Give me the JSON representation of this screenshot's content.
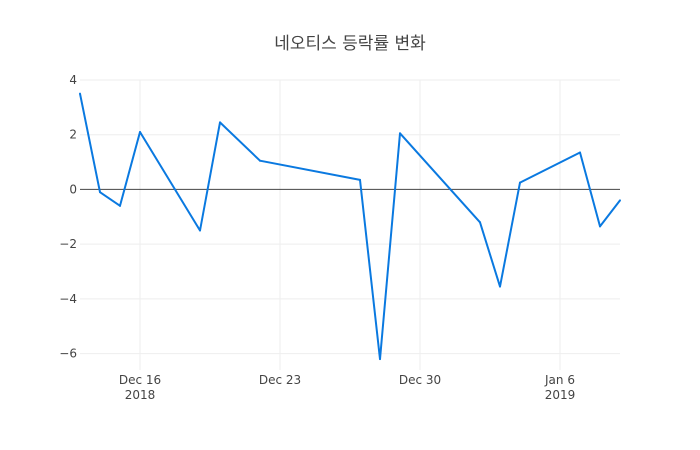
{
  "chart_data": {
    "type": "line",
    "title": "네오티스 등락률 변화",
    "xlabel": "",
    "ylabel": "",
    "x_range": [
      "2018-12-13",
      "2019-01-09"
    ],
    "ylim": [
      -6.6,
      4.0
    ],
    "grid": true,
    "legend": "none",
    "x_ticks": [
      {
        "date": "2018-12-16",
        "line1": "Dec 16",
        "line2": "2018"
      },
      {
        "date": "2018-12-23",
        "line1": "Dec 23",
        "line2": ""
      },
      {
        "date": "2018-12-30",
        "line1": "Dec 30",
        "line2": ""
      },
      {
        "date": "2019-01-06",
        "line1": "Jan 6",
        "line2": "2019"
      }
    ],
    "y_ticks": [
      {
        "value": 4,
        "label": "4"
      },
      {
        "value": 2,
        "label": "2"
      },
      {
        "value": 0,
        "label": "0"
      },
      {
        "value": -2,
        "label": "−2"
      },
      {
        "value": -4,
        "label": "−4"
      },
      {
        "value": -6,
        "label": "−6"
      }
    ],
    "series": [
      {
        "color": "#0a79e0",
        "points": [
          {
            "x": "2018-12-13",
            "y": 3.5
          },
          {
            "x": "2018-12-14",
            "y": -0.1
          },
          {
            "x": "2018-12-15",
            "y": -0.6
          },
          {
            "x": "2018-12-16",
            "y": 2.1
          },
          {
            "x": "2018-12-19",
            "y": -1.5
          },
          {
            "x": "2018-12-20",
            "y": 2.45
          },
          {
            "x": "2018-12-22",
            "y": 1.05
          },
          {
            "x": "2018-12-27",
            "y": 0.35
          },
          {
            "x": "2018-12-28",
            "y": -6.2
          },
          {
            "x": "2018-12-29",
            "y": 2.05
          },
          {
            "x": "2019-01-02",
            "y": -1.2
          },
          {
            "x": "2019-01-03",
            "y": -3.55
          },
          {
            "x": "2019-01-04",
            "y": 0.25
          },
          {
            "x": "2019-01-07",
            "y": 1.35
          },
          {
            "x": "2019-01-08",
            "y": -1.35
          },
          {
            "x": "2019-01-09",
            "y": -0.4
          }
        ]
      }
    ]
  }
}
